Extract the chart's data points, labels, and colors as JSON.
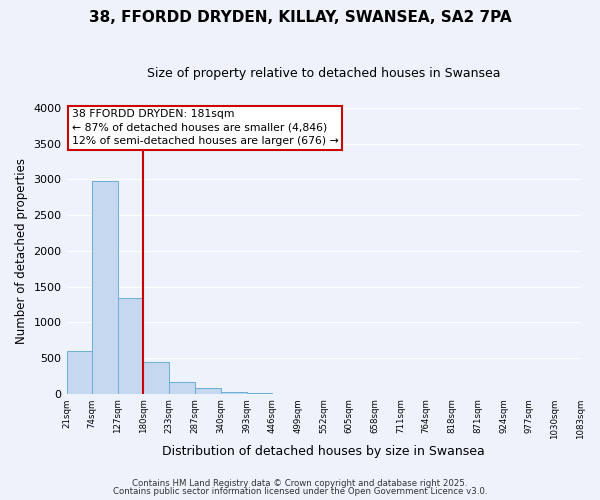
{
  "title": "38, FFORDD DRYDEN, KILLAY, SWANSEA, SA2 7PA",
  "subtitle": "Size of property relative to detached houses in Swansea",
  "bar_values": [
    600,
    2980,
    1340,
    440,
    160,
    80,
    30,
    5,
    2,
    1,
    0,
    0,
    0,
    0,
    0,
    0,
    0,
    0,
    0,
    0
  ],
  "bin_edges": [
    21,
    74,
    127,
    180,
    233,
    287,
    340,
    393,
    446,
    499,
    552,
    605,
    658,
    711,
    764,
    818,
    871,
    924,
    977,
    1030,
    1083
  ],
  "tick_labels": [
    "21sqm",
    "74sqm",
    "127sqm",
    "180sqm",
    "233sqm",
    "287sqm",
    "340sqm",
    "393sqm",
    "446sqm",
    "499sqm",
    "552sqm",
    "605sqm",
    "658sqm",
    "711sqm",
    "764sqm",
    "818sqm",
    "871sqm",
    "924sqm",
    "977sqm",
    "1030sqm",
    "1083sqm"
  ],
  "bar_color": "#c5d8f0",
  "bar_edgecolor": "#6baed6",
  "vline_x": 180,
  "vline_color": "#cc0000",
  "ylabel": "Number of detached properties",
  "xlabel": "Distribution of detached houses by size in Swansea",
  "ylim": [
    0,
    4000
  ],
  "yticks": [
    0,
    500,
    1000,
    1500,
    2000,
    2500,
    3000,
    3500,
    4000
  ],
  "annotation_title": "38 FFORDD DRYDEN: 181sqm",
  "annotation_line1": "← 87% of detached houses are smaller (4,846)",
  "annotation_line2": "12% of semi-detached houses are larger (676) →",
  "annotation_box_color": "#ffffff",
  "annotation_box_edgecolor": "#cc0000",
  "footnote1": "Contains HM Land Registry data © Crown copyright and database right 2025.",
  "footnote2": "Contains public sector information licensed under the Open Government Licence v3.0.",
  "background_color": "#eef2fb",
  "grid_color": "#ffffff"
}
